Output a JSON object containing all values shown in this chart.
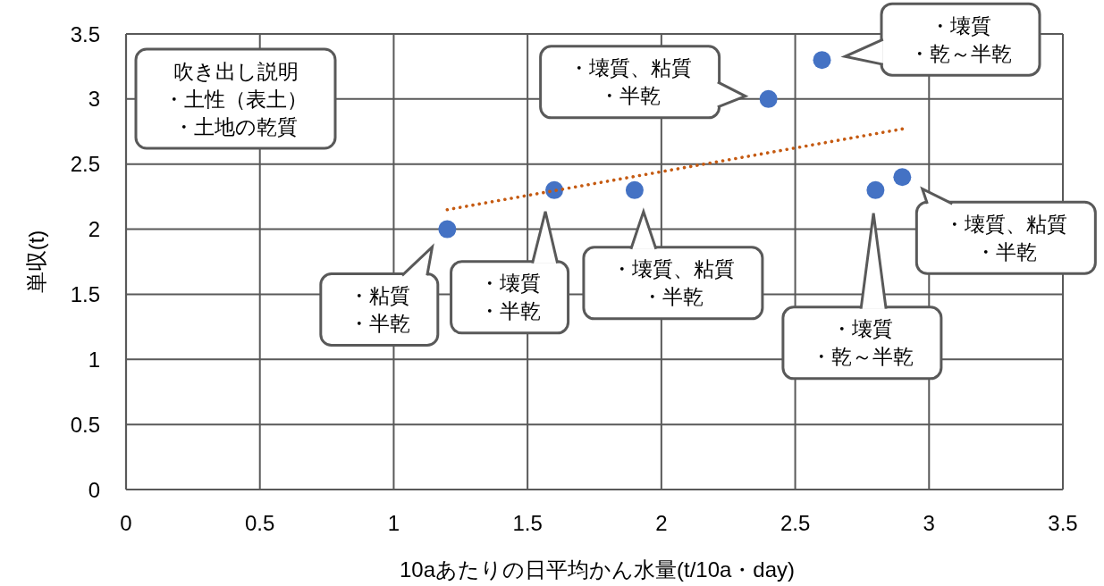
{
  "chart_data": {
    "type": "scatter",
    "xlabel": "10aあたりの日平均かん水量(t/10a・day)",
    "ylabel": "単収(t)",
    "xlim": [
      0,
      3.5
    ],
    "ylim": [
      0,
      3.5
    ],
    "xticks": [
      0,
      0.5,
      1,
      1.5,
      2,
      2.5,
      3,
      3.5
    ],
    "yticks": [
      0,
      0.5,
      1,
      1.5,
      2,
      2.5,
      3,
      3.5
    ],
    "grid": true,
    "marker": "circle",
    "series": [
      {
        "color": "#4472c4",
        "x": [
          1.2,
          1.6,
          1.9,
          2.4,
          2.6,
          2.8,
          2.9
        ],
        "values": [
          2.0,
          2.3,
          2.3,
          3.0,
          3.3,
          2.3,
          2.4
        ]
      },
      {
        "type": "line",
        "color": "#c55a11",
        "line_style": "dotted",
        "marker": "none",
        "x": [
          1.2,
          2.9
        ],
        "values": [
          2.15,
          2.77
        ]
      }
    ],
    "annotations": [
      "吹き出し説明・土性（表土）・土地の乾質",
      "・粘質・半乾",
      "・壊質・半乾",
      "・壊質、粘質・半乾",
      "・壊質、粘質・半乾",
      "・壊質・乾～半乾",
      "・壊質・乾～半乾",
      "・壊質、粘質・半乾"
    ]
  }
}
